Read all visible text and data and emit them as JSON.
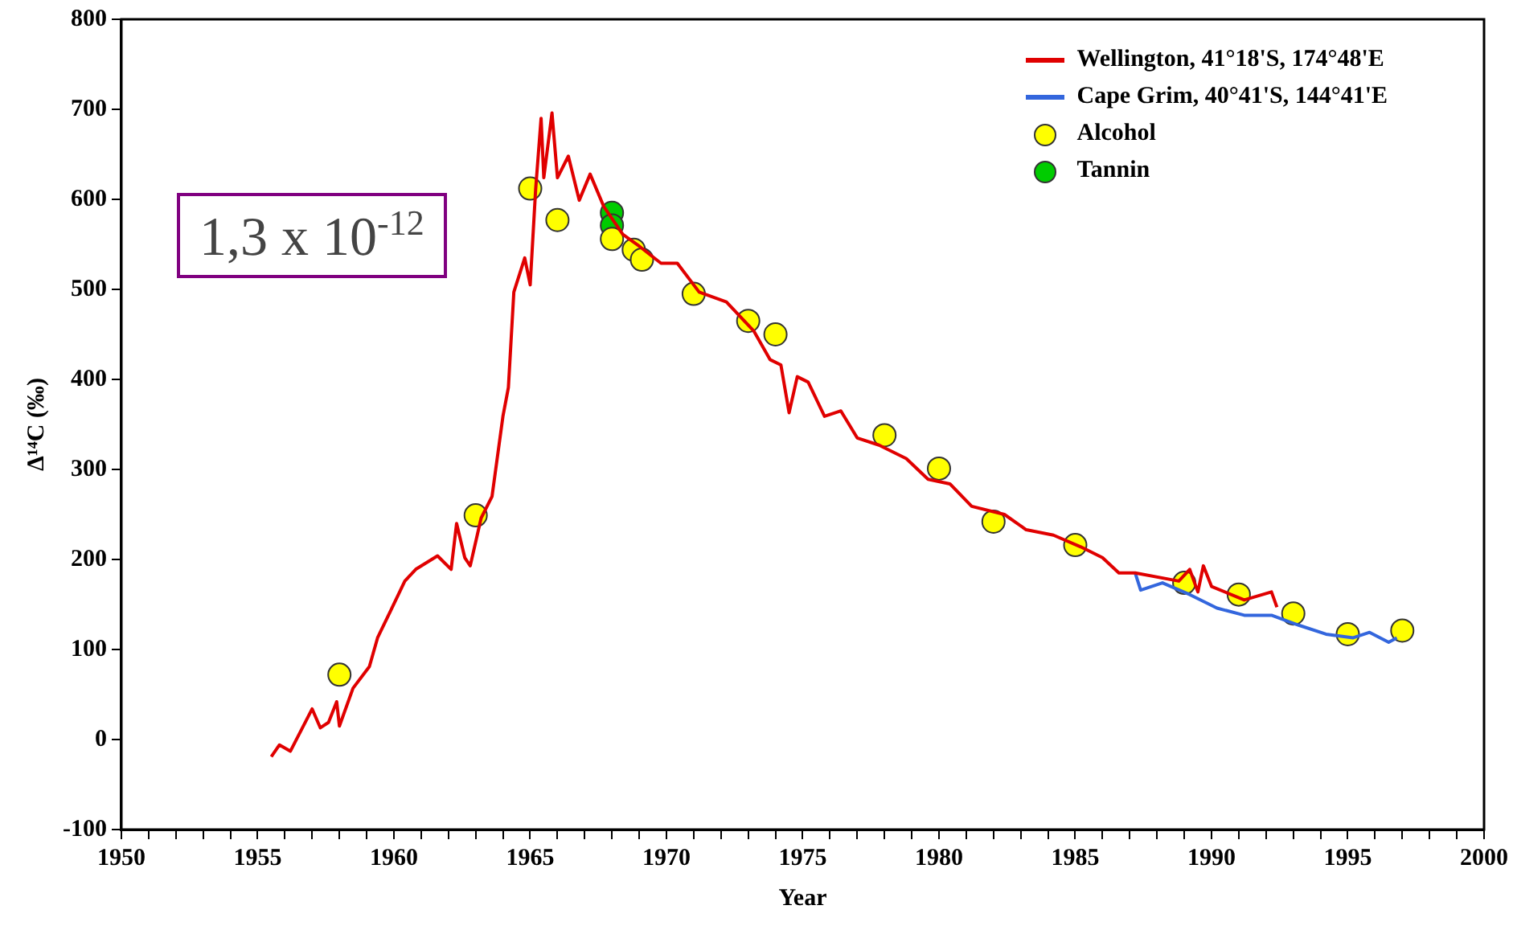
{
  "chart_data": {
    "type": "line",
    "xlabel": "Year",
    "ylabel": "Δ¹⁴C (‰)",
    "xlim": [
      1950,
      2000
    ],
    "xticks": [
      1950,
      {
        "value": 1951,
        "label": null
      },
      {
        "value": 1952,
        "label": null
      },
      {
        "value": 1953,
        "label": null
      },
      {
        "value": 1954,
        "label": null
      },
      1955,
      {
        "value": 1956,
        "label": null
      },
      {
        "value": 1957,
        "label": null
      },
      {
        "value": 1958,
        "label": null
      },
      {
        "value": 1959,
        "label": null
      },
      1960,
      {
        "value": 1961,
        "label": null
      },
      {
        "value": 1962,
        "label": null
      },
      {
        "value": 1963,
        "label": null
      },
      {
        "value": 1964,
        "label": null
      },
      1965,
      {
        "value": 1966,
        "label": null
      },
      {
        "value": 1967,
        "label": null
      },
      {
        "value": 1968,
        "label": null
      },
      {
        "value": 1969,
        "label": null
      },
      1970,
      {
        "value": 1971,
        "label": null
      },
      {
        "value": 1972,
        "label": null
      },
      {
        "value": 1973,
        "label": null
      },
      {
        "value": 1974,
        "label": null
      },
      1975,
      {
        "value": 1976,
        "label": null
      },
      {
        "value": 1977,
        "label": null
      },
      {
        "value": 1978,
        "label": null
      },
      {
        "value": 1979,
        "label": null
      },
      1980,
      {
        "value": 1981,
        "label": null
      },
      {
        "value": 1982,
        "label": null
      },
      {
        "value": 1983,
        "label": null
      },
      {
        "value": 1984,
        "label": null
      },
      1985,
      {
        "value": 1986,
        "label": null
      },
      {
        "value": 1987,
        "label": null
      },
      {
        "value": 1988,
        "label": null
      },
      {
        "value": 1989,
        "label": null
      },
      1990,
      {
        "value": 1991,
        "label": null
      },
      {
        "value": 1992,
        "label": null
      },
      {
        "value": 1993,
        "label": null
      },
      {
        "value": 1994,
        "label": null
      },
      1995,
      {
        "value": 1996,
        "label": null
      },
      {
        "value": 1997,
        "label": null
      },
      {
        "value": 1998,
        "label": null
      },
      {
        "value": 1999,
        "label": null
      },
      2000
    ],
    "ylim": [
      -100,
      800
    ],
    "yticks": [
      -100,
      0,
      100,
      200,
      300,
      400,
      500,
      600,
      700,
      800
    ],
    "grid": false,
    "legend": "top right",
    "line_style": "solid",
    "annotations": [
      "1,3 x 10$^{-12}$"
    ],
    "series": [
      {
        "name": "Wellington, 41°18'S, 174°48'E",
        "type": "line",
        "color": "#e00000",
        "x": [
          1955.5,
          1955.8,
          1956.2,
          1957.0,
          1957.3,
          1957.6,
          1957.9,
          1958.0,
          1958.5,
          1959.1,
          1959.4,
          1959.8,
          1960.4,
          1960.8,
          1961.6,
          1962.1,
          1962.3,
          1962.6,
          1962.8,
          1963.2,
          1963.6,
          1964.0,
          1964.2,
          1964.4,
          1964.8,
          1965.0,
          1965.2,
          1965.4,
          1965.5,
          1965.8,
          1966.0,
          1966.4,
          1966.8,
          1967.2,
          1967.7,
          1968.4,
          1969.0,
          1969.8,
          1970.4,
          1971.2,
          1972.2,
          1973.2,
          1973.8,
          1974.2,
          1974.5,
          1974.8,
          1975.2,
          1975.8,
          1976.4,
          1977.0,
          1977.8,
          1978.8,
          1979.6,
          1980.4,
          1981.2,
          1982.4,
          1983.2,
          1984.2,
          1985.2,
          1986.0,
          1986.6,
          1987.2,
          1988.8,
          1989.2,
          1989.5,
          1989.7,
          1990.0,
          1991.2,
          1992.2,
          1992.4
        ],
        "values": [
          -19,
          -6,
          -13,
          34,
          13,
          19,
          42,
          15,
          57,
          81,
          113,
          138,
          176,
          189,
          204,
          189,
          240,
          202,
          193,
          246,
          270,
          359,
          391,
          497,
          535,
          505,
          611,
          690,
          624,
          696,
          624,
          648,
          599,
          628,
          592,
          561,
          548,
          529,
          529,
          497,
          486,
          454,
          422,
          416,
          363,
          403,
          397,
          359,
          365,
          335,
          327,
          312,
          289,
          284,
          259,
          250,
          233,
          227,
          214,
          202,
          185,
          185,
          176,
          189,
          164,
          193,
          170,
          155,
          164,
          147
        ]
      },
      {
        "name": "Cape Grim, 40°41'S, 144°41'E",
        "type": "line",
        "color": "#3366dd",
        "x": [
          1987.2,
          1987.4,
          1988.2,
          1989.2,
          1990.2,
          1991.2,
          1992.2,
          1993.2,
          1994.2,
          1995.2,
          1995.8,
          1996.5,
          1996.8
        ],
        "values": [
          185,
          166,
          174,
          161,
          146,
          138,
          138,
          127,
          117,
          113,
          119,
          108,
          113
        ]
      },
      {
        "name": "Alcohol",
        "type": "scatter",
        "marker": "circle",
        "color": "#ffff00",
        "x": [
          1958,
          1963,
          1965,
          1966,
          1968,
          1968.8,
          1969.1,
          1971,
          1973,
          1974,
          1978,
          1980,
          1982,
          1985,
          1989,
          1991,
          1993,
          1995,
          1997
        ],
        "values": [
          72,
          249,
          612,
          577,
          556,
          544,
          533,
          495,
          465,
          450,
          338,
          301,
          242,
          216,
          174,
          161,
          140,
          117,
          121
        ]
      },
      {
        "name": "Tannin",
        "type": "scatter",
        "marker": "circle",
        "color": "#00cc00",
        "x": [
          1968,
          1968
        ],
        "values": [
          585,
          571
        ]
      }
    ]
  }
}
